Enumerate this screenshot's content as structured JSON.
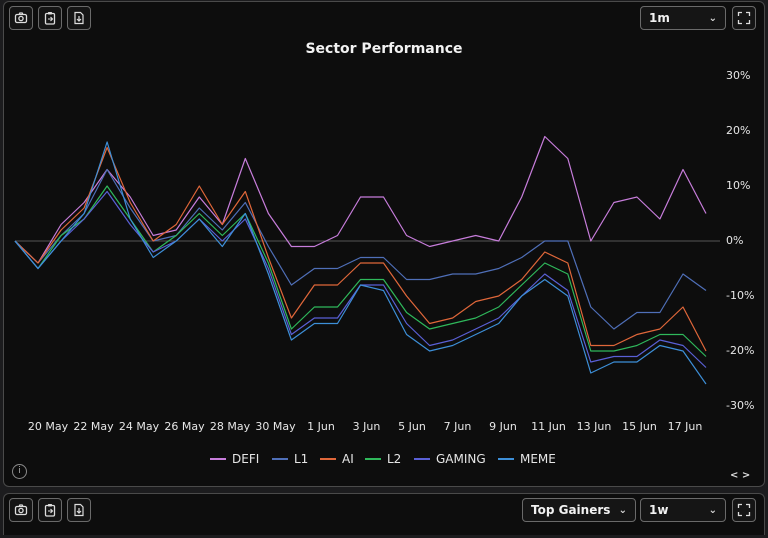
{
  "toolbar": {
    "timeframe": "1m",
    "chevron": "⌄"
  },
  "bottom_toolbar": {
    "list_select": "Top Gainers",
    "timeframe": "1w",
    "chevron": "⌄"
  },
  "icons": [
    "camera-icon",
    "clipboard-icon",
    "download-icon",
    "fullscreen-icon",
    "info-icon"
  ],
  "nav_label": "< >",
  "info_label": "i",
  "colors": {
    "DEFI": "#c77ddb",
    "L1": "#4f6fb8",
    "AI": "#e0673a",
    "L2": "#2fb85b",
    "GAMING": "#5a60d6",
    "MEME": "#3d8fd8",
    "zero_line": "#555555"
  },
  "chart_data": {
    "type": "line",
    "title": "Sector Performance",
    "x_tick_labels": [
      "20 May",
      "22 May",
      "24 May",
      "26 May",
      "28 May",
      "30 May",
      "1 Jun",
      "3 Jun",
      "5 Jun",
      "7 Jun",
      "9 Jun",
      "11 Jun",
      "13 Jun",
      "15 Jun",
      "17 Jun"
    ],
    "y_tick_labels": [
      "30%",
      "20%",
      "10%",
      "0%",
      "-10%",
      "-20%",
      "-30%"
    ],
    "y_ticks": [
      30,
      20,
      10,
      0,
      -10,
      -20,
      -30
    ],
    "ylim": [
      -30,
      30
    ],
    "unit": "%",
    "x": [
      "19 May",
      "20 May",
      "21 May",
      "22 May",
      "23 May",
      "24 May",
      "25 May",
      "26 May",
      "27 May",
      "28 May",
      "29 May",
      "30 May",
      "31 May",
      "1 Jun",
      "2 Jun",
      "3 Jun",
      "4 Jun",
      "5 Jun",
      "6 Jun",
      "7 Jun",
      "8 Jun",
      "9 Jun",
      "10 Jun",
      "11 Jun",
      "12 Jun",
      "13 Jun",
      "14 Jun",
      "15 Jun",
      "16 Jun",
      "17 Jun",
      "18 Jun"
    ],
    "series": [
      {
        "name": "DEFI",
        "values": [
          0,
          -4,
          3,
          7,
          13,
          8,
          1,
          2,
          8,
          3,
          15,
          5,
          -1,
          -1,
          1,
          8,
          8,
          1,
          -1,
          0,
          1,
          0,
          8,
          19,
          15,
          0,
          7,
          8,
          4,
          13,
          5
        ]
      },
      {
        "name": "L1",
        "values": [
          0,
          -4,
          1,
          5,
          13,
          6,
          0,
          1,
          6,
          2,
          7,
          -1,
          -8,
          -5,
          -5,
          -3,
          -3,
          -7,
          -7,
          -6,
          -6,
          -5,
          -3,
          0,
          0,
          -12,
          -16,
          -13,
          -13,
          -6,
          -9
        ]
      },
      {
        "name": "AI",
        "values": [
          0,
          -4,
          2,
          6,
          17,
          7,
          0,
          3,
          10,
          3,
          9,
          -3,
          -14,
          -8,
          -8,
          -4,
          -4,
          -10,
          -15,
          -14,
          -11,
          -10,
          -7,
          -2,
          -4,
          -19,
          -19,
          -17,
          -16,
          -12,
          -20
        ]
      },
      {
        "name": "L2",
        "values": [
          0,
          -5,
          1,
          4,
          10,
          4,
          -2,
          1,
          5,
          1,
          5,
          -4,
          -16,
          -12,
          -12,
          -7,
          -7,
          -13,
          -16,
          -15,
          -14,
          -12,
          -8,
          -4,
          -6,
          -20,
          -20,
          -19,
          -17,
          -17,
          -21
        ]
      },
      {
        "name": "GAMING",
        "values": [
          0,
          -5,
          0,
          4,
          9,
          3,
          -2,
          0,
          4,
          0,
          4,
          -5,
          -17,
          -14,
          -14,
          -8,
          -8,
          -15,
          -19,
          -18,
          -16,
          -14,
          -10,
          -6,
          -9,
          -22,
          -21,
          -21,
          -18,
          -19,
          -23
        ]
      },
      {
        "name": "MEME",
        "values": [
          0,
          -5,
          0,
          5,
          18,
          4,
          -3,
          0,
          4,
          -1,
          5,
          -6,
          -18,
          -15,
          -15,
          -8,
          -9,
          -17,
          -20,
          -19,
          -17,
          -15,
          -10,
          -7,
          -10,
          -24,
          -22,
          -22,
          -19,
          -20,
          -26
        ]
      }
    ],
    "legend_position": "bottom",
    "grid": false
  }
}
